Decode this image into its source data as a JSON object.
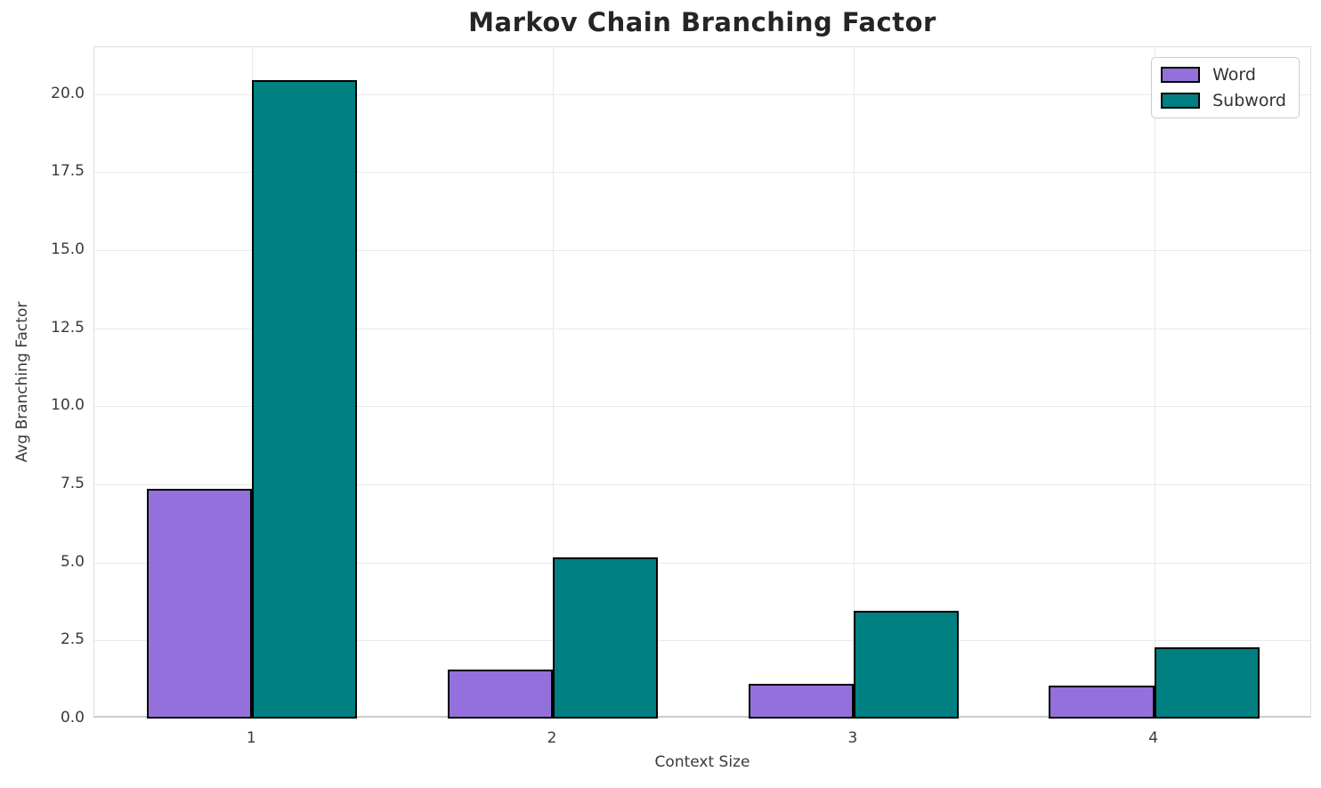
{
  "chart_data": {
    "type": "bar",
    "title": "Markov Chain Branching Factor",
    "xlabel": "Context Size",
    "ylabel": "Avg Branching Factor",
    "categories": [
      "1",
      "2",
      "3",
      "4"
    ],
    "x": [
      1,
      2,
      3,
      4
    ],
    "series": [
      {
        "name": "Word",
        "color": "#9370db",
        "values": [
          7.35,
          1.58,
          1.1,
          1.05
        ]
      },
      {
        "name": "Subword",
        "color": "#008080",
        "values": [
          20.45,
          5.17,
          3.45,
          2.28
        ]
      }
    ],
    "bar_width": 0.35,
    "edge_color": "#000000",
    "xlim": [
      0.475,
      4.525
    ],
    "ylim": [
      0,
      21.5
    ],
    "y_ticks": [
      0.0,
      2.5,
      5.0,
      7.5,
      10.0,
      12.5,
      15.0,
      17.5,
      20.0
    ],
    "y_tick_labels": [
      "0.0",
      "2.5",
      "5.0",
      "7.5",
      "10.0",
      "12.5",
      "15.0",
      "17.5",
      "20.0"
    ],
    "grid": true,
    "legend_position": "upper right"
  },
  "colors": {
    "grid": "#e9e9e9",
    "spine": "#dddddd",
    "bottom_spine": "#cccccc",
    "axis_text": "#3a3a3a",
    "title_text": "#252525",
    "legend_border": "#cccccc"
  }
}
